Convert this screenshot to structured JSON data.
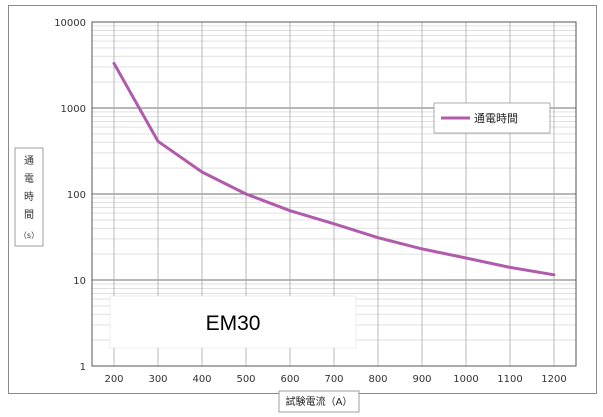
{
  "chart_data": {
    "type": "line",
    "xlabel": "試験電流（A）",
    "ylabel": "通電時間（s）",
    "ylabel_chars": [
      "通",
      "電",
      "時",
      "間",
      "（s）"
    ],
    "x_ticks": [
      200,
      300,
      400,
      500,
      600,
      700,
      800,
      900,
      1000,
      1100,
      1200
    ],
    "xlim": [
      150,
      1250
    ],
    "y_scale": "log",
    "y_ticks": [
      1,
      10,
      100,
      1000,
      10000
    ],
    "ylim": [
      1,
      10000
    ],
    "grid": true,
    "legend_position": "right",
    "annotation": "EM30",
    "series": [
      {
        "name": "通電時間",
        "color": "#b05cab",
        "x": [
          200,
          300,
          400,
          500,
          600,
          700,
          800,
          900,
          1000,
          1100,
          1200
        ],
        "y": [
          3300,
          410,
          180,
          100,
          64,
          45,
          31,
          23,
          18,
          14,
          11.5
        ]
      }
    ]
  }
}
